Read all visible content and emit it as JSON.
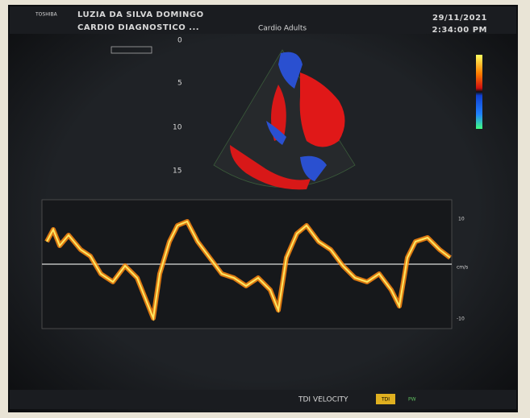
{
  "header": {
    "brand": "TOSHIBA",
    "patient": "LUZIA DA SILVA DOMINGO",
    "institution": "CARDIO DIAGNOSTICO ...",
    "preset": "Cardio Adults",
    "date": "29/11/2021",
    "time": "2:34:00 PM"
  },
  "depth_scale": [
    "0",
    "5",
    "10",
    "15"
  ],
  "doppler": {
    "scale": [
      "10",
      "cm/s",
      "-10"
    ]
  },
  "footer": {
    "mode": "TDI VELOCITY",
    "buttons": [
      "TDI",
      "PW"
    ]
  }
}
